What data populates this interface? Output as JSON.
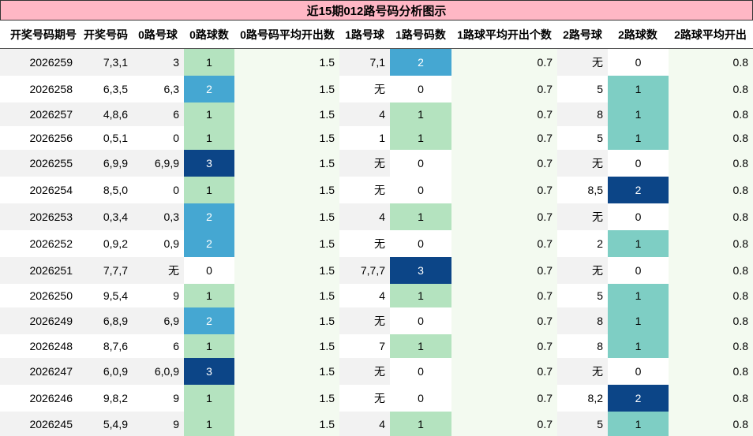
{
  "title": "近15期012路号码分析图示",
  "headers": [
    "开奖号码期号",
    "开奖号码",
    "0路号球",
    "0路球数",
    "0路号码平均开出数",
    "1路号球",
    "1路号码数",
    "1路球平均开出个数",
    "2路号球",
    "2路球数",
    "2路球平均开出"
  ],
  "colors": {
    "title_bg": "#ffb7c5",
    "count_1_green": "#b4e3bf",
    "count_1_teal": "#7ecec4",
    "count_2_blue": "#45a7d2",
    "count_3_navy": "#0c4587",
    "avg_bg": "#f3faf0",
    "stripe_gray": "#f2f2f2"
  },
  "rows": [
    {
      "period": "2026259",
      "numbers": "7,3,1",
      "r0_balls": "3",
      "r0_count": "1",
      "r0_avg": "1.5",
      "r1_balls": "7,1",
      "r1_count": "2",
      "r1_avg": "0.7",
      "r2_balls": "无",
      "r2_count": "0",
      "r2_avg": "0.8"
    },
    {
      "period": "2026258",
      "numbers": "6,3,5",
      "r0_balls": "6,3",
      "r0_count": "2",
      "r0_avg": "1.5",
      "r1_balls": "无",
      "r1_count": "0",
      "r1_avg": "0.7",
      "r2_balls": "5",
      "r2_count": "1",
      "r2_avg": "0.8"
    },
    {
      "period": "2026257",
      "numbers": "4,8,6",
      "r0_balls": "6",
      "r0_count": "1",
      "r0_avg": "1.5",
      "r1_balls": "4",
      "r1_count": "1",
      "r1_avg": "0.7",
      "r2_balls": "8",
      "r2_count": "1",
      "r2_avg": "0.8"
    },
    {
      "period": "2026256",
      "numbers": "0,5,1",
      "r0_balls": "0",
      "r0_count": "1",
      "r0_avg": "1.5",
      "r1_balls": "1",
      "r1_count": "1",
      "r1_avg": "0.7",
      "r2_balls": "5",
      "r2_count": "1",
      "r2_avg": "0.8"
    },
    {
      "period": "2026255",
      "numbers": "6,9,9",
      "r0_balls": "6,9,9",
      "r0_count": "3",
      "r0_avg": "1.5",
      "r1_balls": "无",
      "r1_count": "0",
      "r1_avg": "0.7",
      "r2_balls": "无",
      "r2_count": "0",
      "r2_avg": "0.8"
    },
    {
      "period": "2026254",
      "numbers": "8,5,0",
      "r0_balls": "0",
      "r0_count": "1",
      "r0_avg": "1.5",
      "r1_balls": "无",
      "r1_count": "0",
      "r1_avg": "0.7",
      "r2_balls": "8,5",
      "r2_count": "2",
      "r2_avg": "0.8"
    },
    {
      "period": "2026253",
      "numbers": "0,3,4",
      "r0_balls": "0,3",
      "r0_count": "2",
      "r0_avg": "1.5",
      "r1_balls": "4",
      "r1_count": "1",
      "r1_avg": "0.7",
      "r2_balls": "无",
      "r2_count": "0",
      "r2_avg": "0.8"
    },
    {
      "period": "2026252",
      "numbers": "0,9,2",
      "r0_balls": "0,9",
      "r0_count": "2",
      "r0_avg": "1.5",
      "r1_balls": "无",
      "r1_count": "0",
      "r1_avg": "0.7",
      "r2_balls": "2",
      "r2_count": "1",
      "r2_avg": "0.8"
    },
    {
      "period": "2026251",
      "numbers": "7,7,7",
      "r0_balls": "无",
      "r0_count": "0",
      "r0_avg": "1.5",
      "r1_balls": "7,7,7",
      "r1_count": "3",
      "r1_avg": "0.7",
      "r2_balls": "无",
      "r2_count": "0",
      "r2_avg": "0.8"
    },
    {
      "period": "2026250",
      "numbers": "9,5,4",
      "r0_balls": "9",
      "r0_count": "1",
      "r0_avg": "1.5",
      "r1_balls": "4",
      "r1_count": "1",
      "r1_avg": "0.7",
      "r2_balls": "5",
      "r2_count": "1",
      "r2_avg": "0.8"
    },
    {
      "period": "2026249",
      "numbers": "6,8,9",
      "r0_balls": "6,9",
      "r0_count": "2",
      "r0_avg": "1.5",
      "r1_balls": "无",
      "r1_count": "0",
      "r1_avg": "0.7",
      "r2_balls": "8",
      "r2_count": "1",
      "r2_avg": "0.8"
    },
    {
      "period": "2026248",
      "numbers": "8,7,6",
      "r0_balls": "6",
      "r0_count": "1",
      "r0_avg": "1.5",
      "r1_balls": "7",
      "r1_count": "1",
      "r1_avg": "0.7",
      "r2_balls": "8",
      "r2_count": "1",
      "r2_avg": "0.8"
    },
    {
      "period": "2026247",
      "numbers": "6,0,9",
      "r0_balls": "6,0,9",
      "r0_count": "3",
      "r0_avg": "1.5",
      "r1_balls": "无",
      "r1_count": "0",
      "r1_avg": "0.7",
      "r2_balls": "无",
      "r2_count": "0",
      "r2_avg": "0.8"
    },
    {
      "period": "2026246",
      "numbers": "9,8,2",
      "r0_balls": "9",
      "r0_count": "1",
      "r0_avg": "1.5",
      "r1_balls": "无",
      "r1_count": "0",
      "r1_avg": "0.7",
      "r2_balls": "8,2",
      "r2_count": "2",
      "r2_avg": "0.8"
    },
    {
      "period": "2026245",
      "numbers": "5,4,9",
      "r0_balls": "9",
      "r0_count": "1",
      "r0_avg": "1.5",
      "r1_balls": "4",
      "r1_count": "1",
      "r1_avg": "0.7",
      "r2_balls": "5",
      "r2_count": "1",
      "r2_avg": "0.8"
    }
  ]
}
